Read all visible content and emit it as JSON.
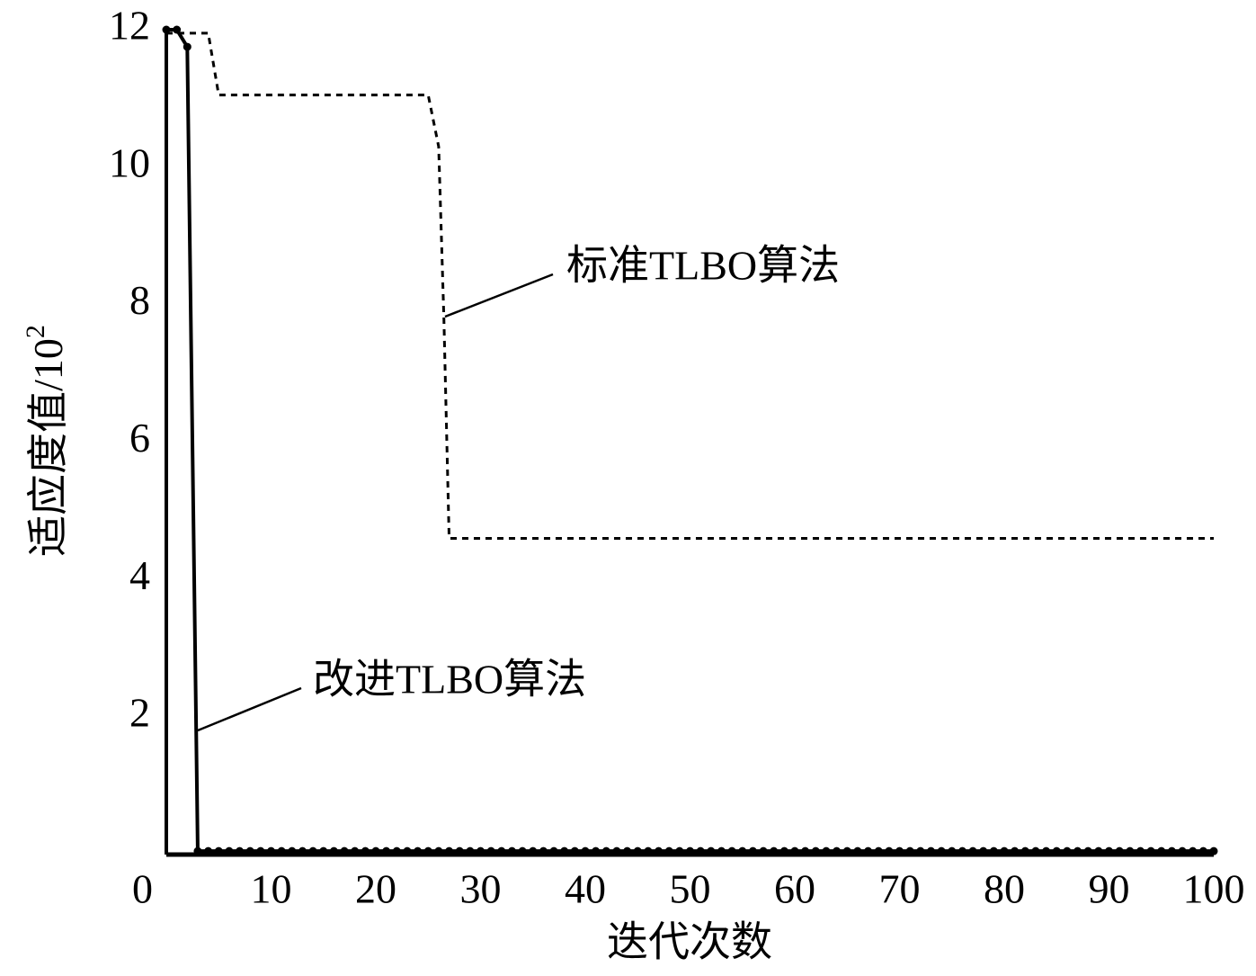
{
  "chart_data": {
    "type": "line",
    "x_label": "迭代次数",
    "y_label": "适应度值/10",
    "y_label_exponent": "2",
    "xlim": [
      0,
      100
    ],
    "ylim": [
      0,
      12
    ],
    "xticks": [
      0,
      10,
      20,
      30,
      40,
      50,
      60,
      70,
      80,
      90,
      100
    ],
    "yticks": [
      2,
      4,
      6,
      8,
      10,
      12
    ],
    "series": [
      {
        "name": "改进TLBO算法",
        "color": "#000000",
        "style": "solid",
        "markers": true,
        "x": [
          0,
          1,
          2,
          3,
          4,
          5,
          6,
          7,
          8,
          9,
          10,
          11,
          12,
          13,
          14,
          15,
          16,
          17,
          18,
          19,
          20,
          21,
          22,
          23,
          24,
          25,
          26,
          27,
          28,
          29,
          30,
          31,
          32,
          33,
          34,
          35,
          36,
          37,
          38,
          39,
          40,
          41,
          42,
          43,
          44,
          45,
          46,
          47,
          48,
          49,
          50,
          51,
          52,
          53,
          54,
          55,
          56,
          57,
          58,
          59,
          60,
          61,
          62,
          63,
          64,
          65,
          66,
          67,
          68,
          69,
          70,
          71,
          72,
          73,
          74,
          75,
          76,
          77,
          78,
          79,
          80,
          81,
          82,
          83,
          84,
          85,
          86,
          87,
          88,
          89,
          90,
          91,
          92,
          93,
          94,
          95,
          96,
          97,
          98,
          99,
          100
        ],
        "values": [
          12,
          12,
          11.75,
          0.05,
          0.05,
          0.05,
          0.05,
          0.05,
          0.05,
          0.05,
          0.05,
          0.05,
          0.05,
          0.05,
          0.05,
          0.05,
          0.05,
          0.05,
          0.05,
          0.05,
          0.05,
          0.05,
          0.05,
          0.05,
          0.05,
          0.05,
          0.05,
          0.05,
          0.05,
          0.05,
          0.05,
          0.05,
          0.05,
          0.05,
          0.05,
          0.05,
          0.05,
          0.05,
          0.05,
          0.05,
          0.05,
          0.05,
          0.05,
          0.05,
          0.05,
          0.05,
          0.05,
          0.05,
          0.05,
          0.05,
          0.05,
          0.05,
          0.05,
          0.05,
          0.05,
          0.05,
          0.05,
          0.05,
          0.05,
          0.05,
          0.05,
          0.05,
          0.05,
          0.05,
          0.05,
          0.05,
          0.05,
          0.05,
          0.05,
          0.05,
          0.05,
          0.05,
          0.05,
          0.05,
          0.05,
          0.05,
          0.05,
          0.05,
          0.05,
          0.05,
          0.05,
          0.05,
          0.05,
          0.05,
          0.05,
          0.05,
          0.05,
          0.05,
          0.05,
          0.05,
          0.05,
          0.05,
          0.05,
          0.05,
          0.05,
          0.05,
          0.05,
          0.05,
          0.05,
          0.05,
          0.05
        ]
      },
      {
        "name": "标准TLBO算法",
        "color": "#000000",
        "style": "dashed",
        "markers": false,
        "x": [
          0,
          4,
          5,
          25,
          26,
          26.5,
          27,
          100
        ],
        "values": [
          11.95,
          11.95,
          11.05,
          11.05,
          10.3,
          7.8,
          4.6,
          4.6
        ]
      }
    ]
  }
}
